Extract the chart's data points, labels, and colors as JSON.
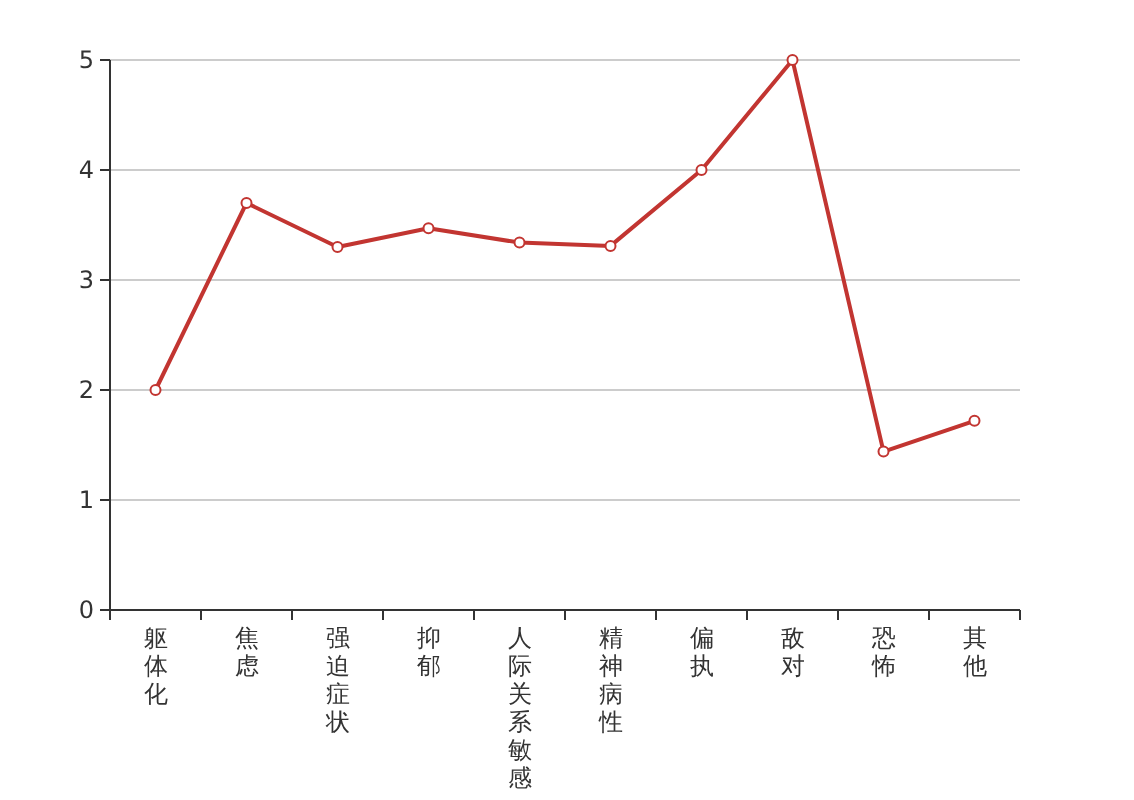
{
  "chart_data": {
    "type": "line",
    "categories": [
      "躯体化",
      "焦虑",
      "强迫症状",
      "抑郁",
      "人际关系敏感",
      "精神病性",
      "偏执",
      "敌对",
      "恐怖",
      "其他"
    ],
    "series": [
      {
        "color": "#c23531",
        "values": [
          2.0,
          3.7,
          3.3,
          3.47,
          3.34,
          3.31,
          4.0,
          5.0,
          1.44,
          1.72
        ]
      }
    ],
    "ylim": [
      0,
      5
    ],
    "yticks": [
      0,
      1,
      2,
      3,
      4,
      5
    ],
    "grid": "y",
    "marker": "circle",
    "line_style": "solid"
  }
}
